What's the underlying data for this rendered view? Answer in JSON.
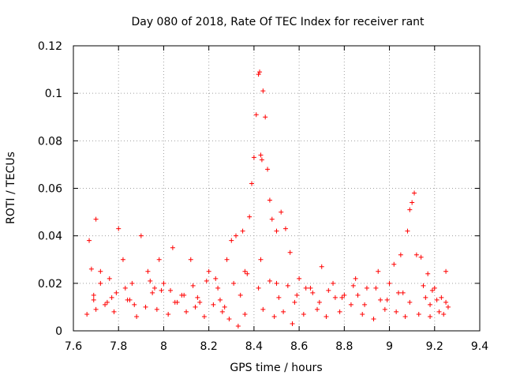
{
  "chart_data": {
    "type": "scatter",
    "title": "Day 080 of 2018, Rate Of TEC Index for receiver rant",
    "xlabel": "GPS time / hours",
    "ylabel": "ROTI / TECUs",
    "xlim": [
      7.6,
      9.4
    ],
    "ylim": [
      0,
      0.12
    ],
    "xticks": [
      "7.6",
      "7.8",
      "8",
      "8.2",
      "8.4",
      "8.6",
      "8.8",
      "9",
      "9.2",
      "9.4"
    ],
    "yticks": [
      "0",
      "0.02",
      "0.04",
      "0.06",
      "0.08",
      "0.1",
      "0.12"
    ],
    "grid": true,
    "marker": "+",
    "color": "#ff0000",
    "series": [
      {
        "name": "ROTI",
        "x": [
          7.67,
          7.68,
          7.69,
          7.7,
          7.72,
          7.75,
          7.79,
          7.8,
          7.82,
          7.86,
          7.9,
          7.93,
          7.96,
          7.98,
          8.0,
          8.04,
          8.08,
          8.12,
          8.16,
          8.2,
          8.24,
          8.28,
          8.3,
          8.32,
          8.35,
          8.38,
          8.39,
          8.4,
          8.41,
          8.42,
          8.425,
          8.43,
          8.435,
          8.44,
          8.45,
          8.46,
          8.47,
          8.48,
          8.5,
          8.52,
          8.54,
          8.56,
          8.6,
          8.65,
          8.7,
          8.75,
          8.8,
          8.85,
          8.9,
          8.95,
          9.0,
          9.02,
          9.05,
          9.08,
          9.09,
          9.1,
          9.11,
          9.12,
          9.14,
          9.17,
          9.2,
          9.23,
          9.25,
          7.66,
          7.7,
          7.74,
          7.78,
          7.84,
          7.88,
          7.92,
          7.97,
          8.02,
          8.06,
          8.1,
          8.14,
          8.18,
          8.22,
          8.26,
          8.29,
          8.33,
          8.36,
          8.44,
          8.49,
          8.53,
          8.57,
          8.62,
          8.68,
          8.72,
          8.78,
          8.83,
          8.88,
          8.93,
          8.98,
          9.03,
          9.07,
          9.13,
          9.18,
          9.22,
          9.24,
          7.69,
          7.77,
          7.85,
          7.95,
          8.05,
          8.15,
          8.25,
          8.34,
          8.42,
          8.51,
          8.58,
          8.66,
          8.76,
          8.86,
          8.96,
          9.06,
          9.16,
          9.21,
          7.72,
          7.83,
          7.94,
          8.03,
          8.13,
          8.23,
          8.31,
          8.37,
          8.47,
          8.55,
          8.63,
          8.73,
          8.84,
          8.94,
          9.04,
          9.15,
          9.19,
          9.25,
          7.76,
          7.87,
          7.99,
          8.09,
          8.19,
          8.27,
          8.36,
          8.43,
          8.5,
          8.59,
          8.69,
          8.79,
          8.89,
          8.99,
          9.09,
          9.18,
          9.26
        ],
        "y": [
          0.038,
          0.026,
          0.013,
          0.047,
          0.025,
          0.012,
          0.016,
          0.043,
          0.03,
          0.02,
          0.04,
          0.025,
          0.018,
          0.03,
          0.02,
          0.035,
          0.015,
          0.03,
          0.012,
          0.025,
          0.018,
          0.03,
          0.038,
          0.04,
          0.042,
          0.048,
          0.062,
          0.073,
          0.091,
          0.108,
          0.109,
          0.074,
          0.072,
          0.101,
          0.09,
          0.068,
          0.055,
          0.047,
          0.042,
          0.05,
          0.043,
          0.033,
          0.022,
          0.018,
          0.027,
          0.02,
          0.015,
          0.022,
          0.018,
          0.025,
          0.02,
          0.028,
          0.032,
          0.042,
          0.051,
          0.054,
          0.058,
          0.032,
          0.031,
          0.024,
          0.018,
          0.014,
          0.025,
          0.007,
          0.009,
          0.011,
          0.008,
          0.013,
          0.006,
          0.01,
          0.009,
          0.007,
          0.012,
          0.008,
          0.01,
          0.006,
          0.011,
          0.008,
          0.005,
          0.002,
          0.007,
          0.009,
          0.006,
          0.008,
          0.003,
          0.007,
          0.009,
          0.006,
          0.008,
          0.011,
          0.007,
          0.005,
          0.009,
          0.008,
          0.006,
          0.007,
          0.006,
          0.008,
          0.007,
          0.015,
          0.014,
          0.013,
          0.016,
          0.012,
          0.014,
          0.013,
          0.015,
          0.018,
          0.014,
          0.012,
          0.016,
          0.014,
          0.015,
          0.013,
          0.016,
          0.014,
          0.013,
          0.02,
          0.018,
          0.021,
          0.017,
          0.019,
          0.022,
          0.02,
          0.024,
          0.021,
          0.019,
          0.018,
          0.017,
          0.019,
          0.018,
          0.016,
          0.019,
          0.017,
          0.012,
          0.022,
          0.011,
          0.017,
          0.015,
          0.021,
          0.01,
          0.025,
          0.03,
          0.02,
          0.015,
          0.012,
          0.014,
          0.011,
          0.013,
          0.012,
          0.011,
          0.01
        ]
      }
    ]
  }
}
